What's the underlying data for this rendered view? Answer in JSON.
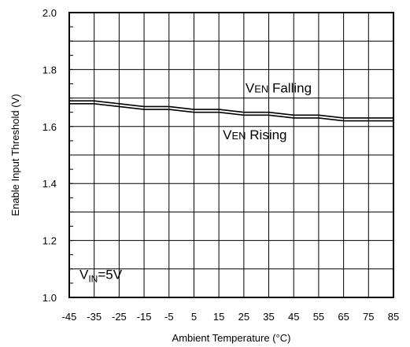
{
  "chart_data": {
    "type": "line",
    "xlabel": "Ambient Temperature (°C)",
    "ylabel": "Enable Input Threshold  (V)",
    "xlim": [
      -45,
      85
    ],
    "ylim": [
      1.0,
      2.0
    ],
    "x_ticks": [
      -45,
      -35,
      -25,
      -15,
      -5,
      5,
      15,
      25,
      35,
      45,
      55,
      65,
      75,
      85
    ],
    "y_ticks": [
      1.0,
      1.2,
      1.4,
      1.6,
      1.8,
      2.0
    ],
    "y_tick_labels": [
      "1.0",
      "1.2",
      "1.4",
      "1.6",
      "1.8",
      "2.0"
    ],
    "grid": true,
    "series": [
      {
        "name": "VEN Falling",
        "x": [
          -45,
          -35,
          -25,
          -15,
          -5,
          5,
          15,
          25,
          35,
          45,
          55,
          65,
          75,
          85
        ],
        "values": [
          1.69,
          1.69,
          1.68,
          1.67,
          1.67,
          1.66,
          1.66,
          1.65,
          1.65,
          1.64,
          1.64,
          1.63,
          1.63,
          1.63
        ]
      },
      {
        "name": "VEN Rising",
        "x": [
          -45,
          -35,
          -25,
          -15,
          -5,
          5,
          15,
          25,
          35,
          45,
          55,
          65,
          75,
          85
        ],
        "values": [
          1.68,
          1.68,
          1.67,
          1.66,
          1.66,
          1.65,
          1.65,
          1.64,
          1.64,
          1.63,
          1.63,
          1.62,
          1.62,
          1.62
        ]
      }
    ],
    "annotations": {
      "falling": {
        "prefix": "V",
        "sub": "EN",
        "suffix": " Falling"
      },
      "rising": {
        "prefix": "V",
        "sub": "EN",
        "suffix": " Rising"
      },
      "condition": {
        "prefix": "V",
        "sub": "IN",
        "suffix": "=5V"
      }
    },
    "colors": {
      "line": "#000000",
      "grid": "#000000",
      "frame": "#000000",
      "background": "#ffffff"
    }
  }
}
